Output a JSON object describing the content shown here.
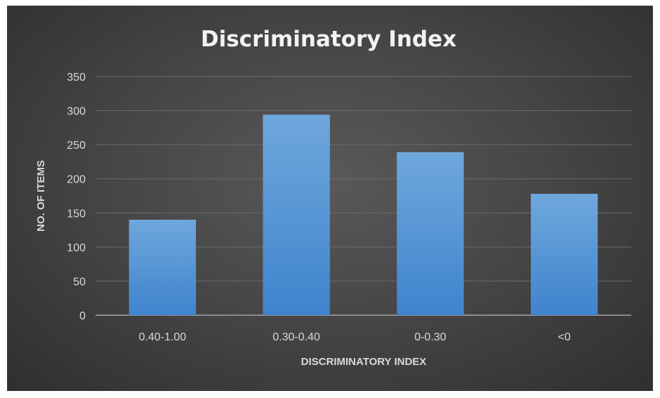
{
  "chart_data": {
    "type": "bar",
    "title": "Discriminatory Index",
    "xlabel": "DISCRIMINATORY INDEX",
    "ylabel": "NO. OF ITEMS",
    "categories": [
      "0.40-1.00",
      "0.30-0.40",
      "0-0.30",
      "<0"
    ],
    "values": [
      140,
      294,
      239,
      178
    ],
    "ylim": [
      0,
      350
    ],
    "yticks": [
      0,
      50,
      100,
      150,
      200,
      250,
      300,
      350
    ],
    "grid": true,
    "legend": "none",
    "colors": {
      "bar_top": "#6fa7dc",
      "bar_bottom": "#3f84cd",
      "gridline": "#6b6b6b",
      "axis_line": "#a6a6a6"
    }
  }
}
